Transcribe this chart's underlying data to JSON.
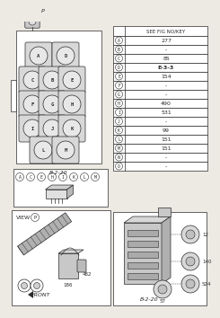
{
  "bg_color": "#ede9e3",
  "table_header": "SEE FIG NO/KEY",
  "table_rows": [
    [
      "A",
      "277"
    ],
    [
      "B",
      "-"
    ],
    [
      "C",
      "85"
    ],
    [
      "D",
      "E-3-3"
    ],
    [
      "E",
      "154"
    ],
    [
      "F",
      "-"
    ],
    [
      "G",
      "-"
    ],
    [
      "H",
      "490"
    ],
    [
      "I",
      "531"
    ],
    [
      "J",
      "-"
    ],
    [
      "K",
      "99"
    ],
    [
      "L",
      "151"
    ],
    [
      "M",
      "151"
    ],
    [
      "N",
      "-"
    ],
    [
      "O",
      "-"
    ]
  ],
  "relay_letters": [
    "A",
    "C",
    "E",
    "H",
    "I",
    "K",
    "L",
    "M"
  ],
  "fig_label_main": "B-2-20",
  "fig_label_bottom": "B-2-20",
  "numbers_bottom_right": [
    "12",
    "140",
    "524",
    "57"
  ],
  "numbers_front": [
    "186",
    "482"
  ]
}
